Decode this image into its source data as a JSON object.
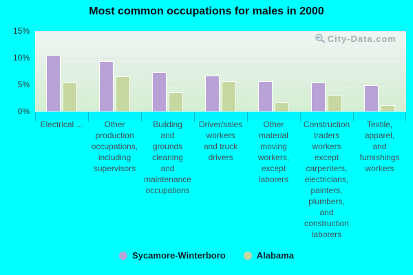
{
  "title": "Most common occupations for males in 2000",
  "watermark": "City-Data.com",
  "colors": {
    "background": "#00ffff",
    "plot_top": "#eff5f2",
    "plot_bottom": "#d4eed0",
    "gridline": "#e4dce8",
    "series1": "#b9a3d6",
    "series2": "#c6d7a0",
    "bar_border": "#ffffff",
    "axis_strip": "#00f4ff",
    "axis_tick": "#0084a4",
    "watermark_text": "#a6adb3"
  },
  "chart_data": {
    "type": "bar",
    "title": "Most common occupations for males in 2000",
    "categories": [
      "Electrical ...",
      "Other production occupations, including supervisors",
      "Building and grounds cleaning and maintenance occupations",
      "Driver/sales workers and truck drivers",
      "Other material moving workers, except laborers",
      "Construction traders workers except carpenters, electricians, painters, plumbers, and construction laborers",
      "Textile, apparel, and furnishings workers"
    ],
    "category_lines": [
      [
        "Electrical ..."
      ],
      [
        "Other",
        "production",
        "occupations,",
        "including",
        "supervisors"
      ],
      [
        "Building",
        "and",
        "grounds",
        "cleaning",
        "and",
        "maintenance",
        "occupations"
      ],
      [
        "Driver/sales",
        "workers",
        "and truck",
        "drivers"
      ],
      [
        "Other",
        "material",
        "moving",
        "workers,",
        "except",
        "laborers"
      ],
      [
        "Construction",
        "traders",
        "workers",
        "except",
        "carpenters,",
        "electricians,",
        "painters,",
        "plumbers,",
        "and",
        "construction",
        "laborers"
      ],
      [
        "Textile,",
        "apparel,",
        "and",
        "furnishings",
        "workers"
      ]
    ],
    "series": [
      {
        "name": "Sycamore-Winterboro",
        "color": "#b9a3d6",
        "values": [
          10.4,
          9.2,
          7.2,
          6.6,
          5.5,
          5.3,
          4.7
        ]
      },
      {
        "name": "Alabama",
        "color": "#c6d7a0",
        "values": [
          5.3,
          6.4,
          3.5,
          5.5,
          1.5,
          2.9,
          1.0
        ]
      }
    ],
    "xlabel": "",
    "ylabel": "",
    "ylim": [
      0,
      15
    ],
    "y_ticks": [
      {
        "value": 0,
        "label": "0%"
      },
      {
        "value": 5,
        "label": "5%"
      },
      {
        "value": 10,
        "label": "10%"
      },
      {
        "value": 15,
        "label": "15%"
      }
    ],
    "grid": true,
    "legend_position": "bottom"
  }
}
